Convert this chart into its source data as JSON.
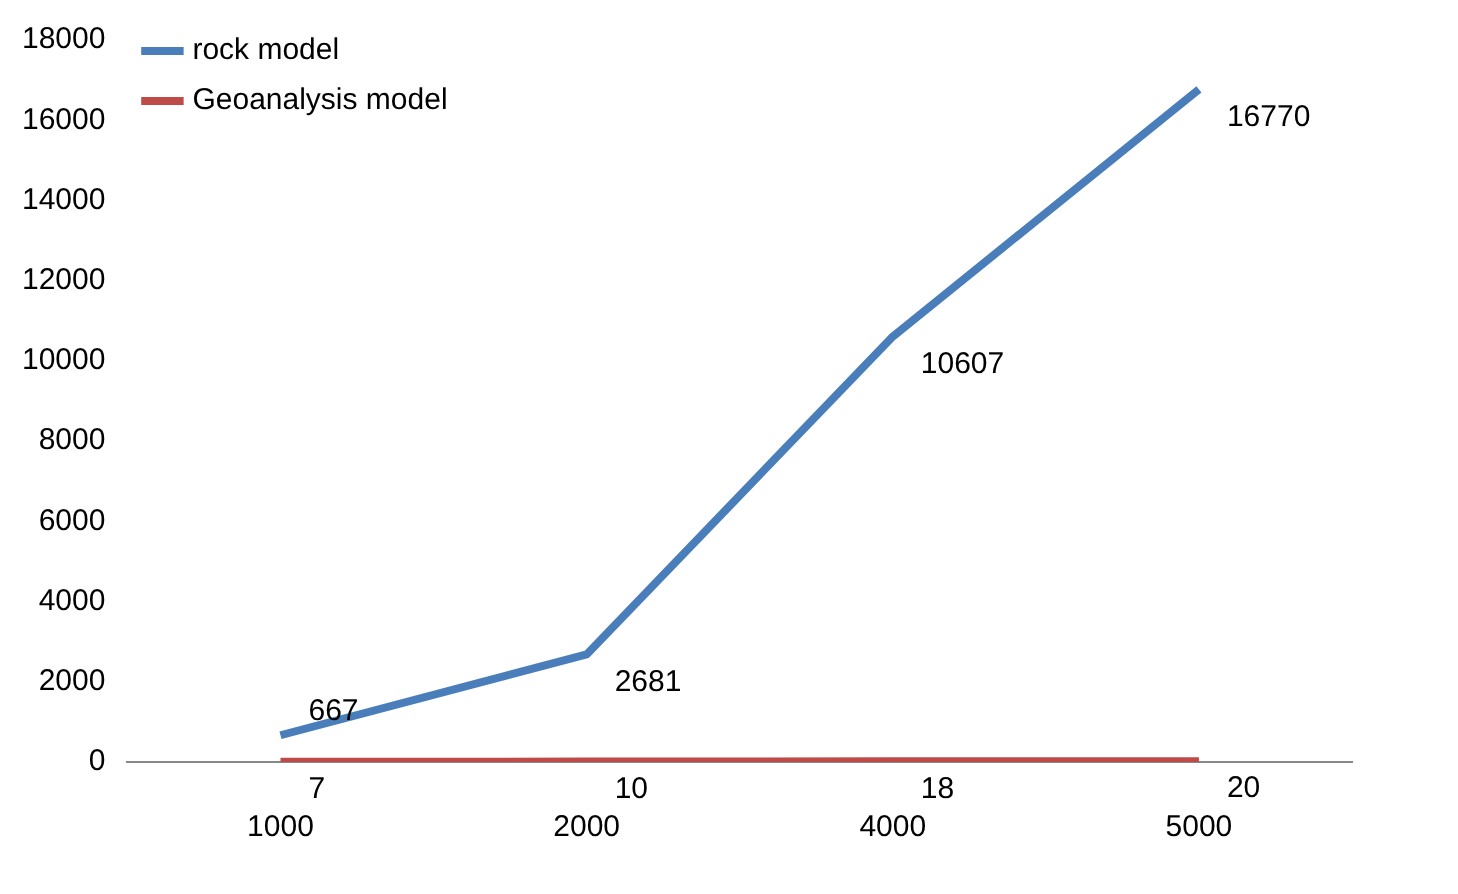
{
  "chart_data": {
    "type": "line",
    "categories": [
      "1000",
      "2000",
      "4000",
      "5000"
    ],
    "series": [
      {
        "name": "rock model",
        "color": "#4a7ebb",
        "values": [
          667,
          2681,
          10607,
          16770
        ]
      },
      {
        "name": "Geoanalysis model",
        "color": "#be4b48",
        "values": [
          7,
          10,
          18,
          20
        ]
      }
    ],
    "ylim": [
      0,
      18000
    ],
    "yticks": [
      0,
      2000,
      4000,
      6000,
      8000,
      10000,
      12000,
      14000,
      16000,
      18000
    ],
    "grid": false,
    "legend": "top left",
    "marker": "none",
    "line_style": "solid",
    "data_labels": true
  }
}
